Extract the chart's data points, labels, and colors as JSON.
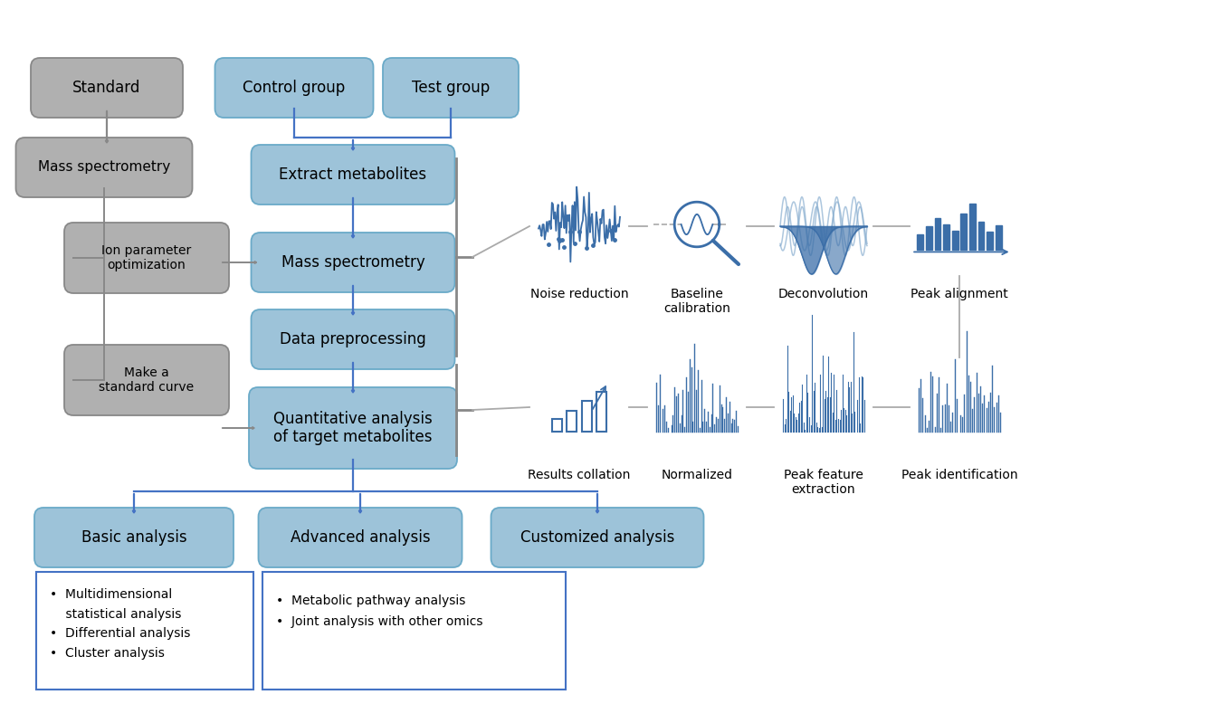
{
  "bg_color": "#ffffff",
  "blue_fill": "#9DC3D9",
  "blue_edge": "#6AAAC8",
  "gray_fill": "#B0B0B0",
  "gray_edge": "#888888",
  "arrow_blue": "#4472C4",
  "arrow_gray": "#888888",
  "icon_blue": "#3B6EA8",
  "icon_light": "#8AAFD0",
  "border_blue": "#4472C4",
  "row1_labels": [
    "Noise reduction",
    "Baseline\ncalibration",
    "Deconvolution",
    "Peak alignment"
  ],
  "row2_labels": [
    "Results collation",
    "Normalized",
    "Peak feature\nextraction",
    "Peak identification"
  ],
  "basic_text": "•  Multidimensional\n    statistical analysis\n•  Differential analysis\n•  Cluster analysis",
  "advanced_text": "•  Metabolic pathway analysis\n•  Joint analysis with other omics"
}
